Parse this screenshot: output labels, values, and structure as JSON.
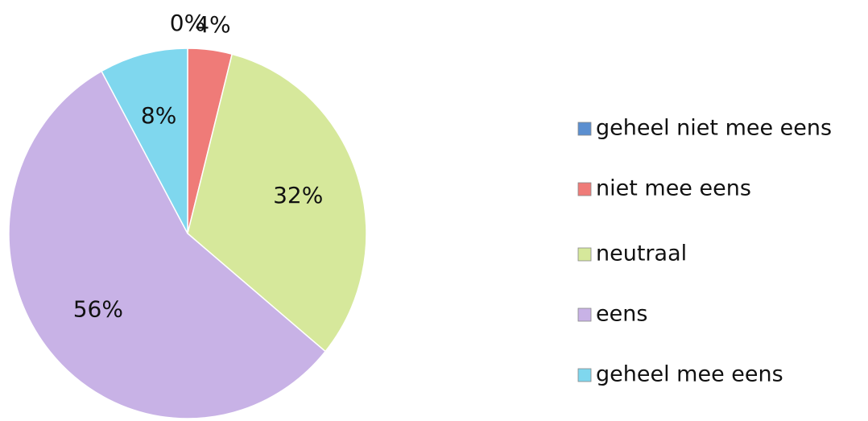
{
  "chart_data": {
    "type": "pie",
    "categories": [
      "geheel niet mee eens",
      "niet mee eens",
      "neutraal",
      "eens",
      "geheel mee eens"
    ],
    "values": [
      0,
      4,
      32,
      56,
      8
    ],
    "value_labels": [
      "0%",
      "4%",
      "32%",
      "56%",
      "8%"
    ],
    "colors": [
      "#5b8fd0",
      "#ef7b78",
      "#d6e89b",
      "#c8b2e6",
      "#7fd7ee"
    ],
    "legend": "right"
  }
}
